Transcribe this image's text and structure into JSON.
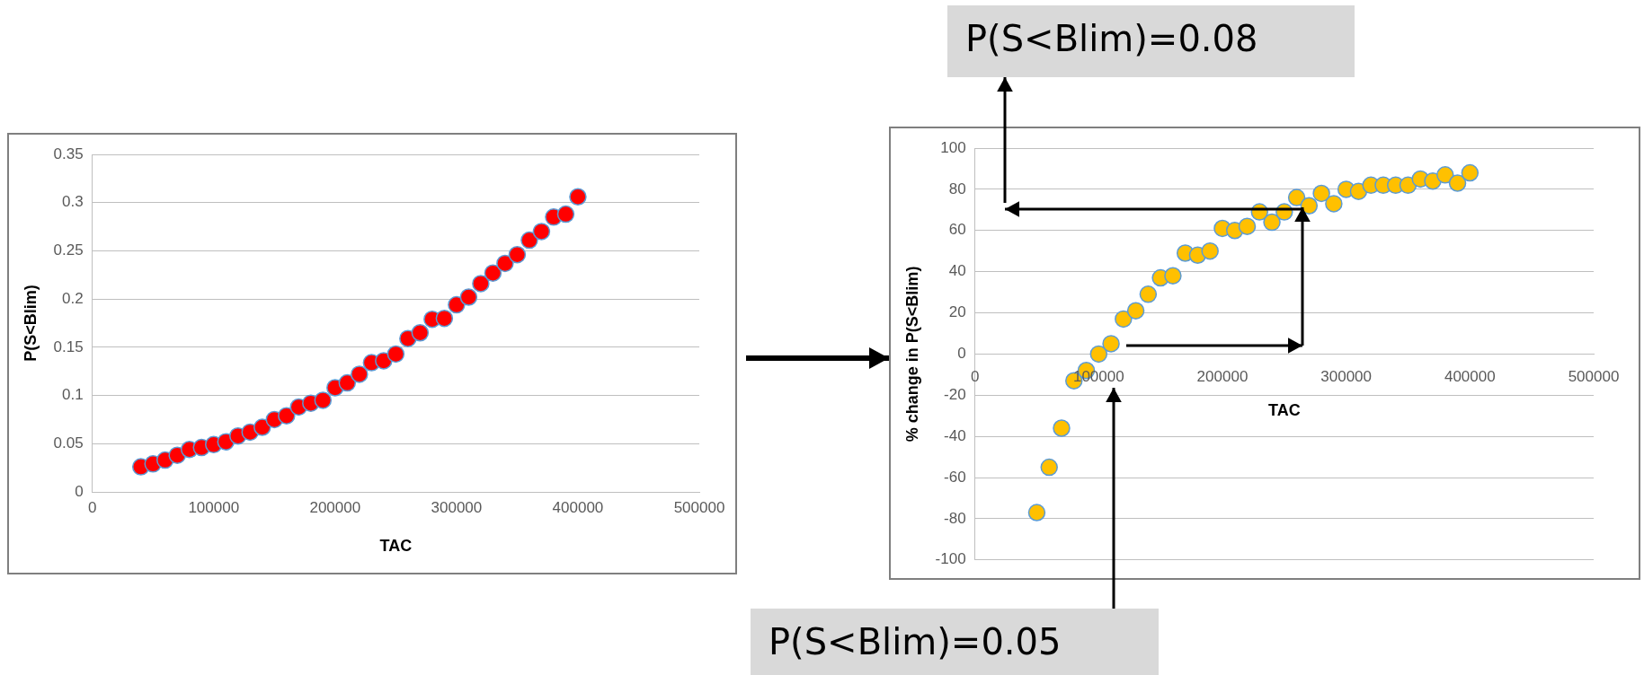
{
  "chart_data": [
    {
      "type": "scatter",
      "xlabel": "TAC",
      "ylabel": "P(S<Blim)",
      "color": "#ff0000",
      "marker": "circle",
      "grid": "y",
      "xlim": [
        0,
        500000
      ],
      "xticks": [
        0,
        100000,
        200000,
        300000,
        400000,
        500000
      ],
      "ylim": [
        0,
        0.35
      ],
      "yticks": [
        0,
        0.05,
        0.1,
        0.15,
        0.2,
        0.25,
        0.3,
        0.35
      ],
      "x": [
        40000,
        50000,
        60000,
        70000,
        80000,
        90000,
        100000,
        110000,
        120000,
        130000,
        140000,
        150000,
        160000,
        170000,
        180000,
        190000,
        200000,
        210000,
        220000,
        230000,
        240000,
        250000,
        260000,
        270000,
        280000,
        290000,
        300000,
        310000,
        320000,
        330000,
        340000,
        350000,
        360000,
        370000,
        380000,
        390000,
        400000
      ],
      "values": [
        0.026,
        0.029,
        0.033,
        0.038,
        0.044,
        0.046,
        0.049,
        0.052,
        0.058,
        0.062,
        0.067,
        0.075,
        0.079,
        0.088,
        0.092,
        0.095,
        0.108,
        0.113,
        0.122,
        0.134,
        0.136,
        0.143,
        0.159,
        0.165,
        0.179,
        0.18,
        0.194,
        0.202,
        0.216,
        0.227,
        0.237,
        0.246,
        0.261,
        0.27,
        0.285,
        0.288,
        0.306
      ]
    },
    {
      "type": "scatter",
      "xlabel": "TAC",
      "ylabel": "% change in P(S<Blim)",
      "color": "#ffc000",
      "marker": "circle",
      "grid": "y",
      "xlim": [
        0,
        500000
      ],
      "xticks": [
        0,
        100000,
        200000,
        300000,
        400000,
        500000
      ],
      "ylim": [
        -100,
        100
      ],
      "yticks": [
        -100,
        -80,
        -60,
        -40,
        -20,
        0,
        20,
        40,
        60,
        80,
        100
      ],
      "x": [
        50000,
        60000,
        70000,
        80000,
        90000,
        100000,
        110000,
        120000,
        130000,
        140000,
        150000,
        160000,
        170000,
        180000,
        190000,
        200000,
        210000,
        220000,
        230000,
        240000,
        250000,
        260000,
        270000,
        280000,
        290000,
        300000,
        310000,
        320000,
        330000,
        340000,
        350000,
        360000,
        370000,
        380000,
        390000,
        400000
      ],
      "values": [
        -77,
        -55,
        -36,
        -13,
        -8,
        0,
        5,
        17,
        21,
        29,
        37,
        38,
        49,
        48,
        50,
        61,
        60,
        62,
        69,
        64,
        69,
        76,
        72,
        78,
        73,
        80,
        79,
        82,
        82,
        82,
        82,
        85,
        84,
        87,
        83,
        88
      ],
      "annotations": [
        "P(S<Blim)=0.08",
        "P(S<Blim)=0.05"
      ]
    }
  ]
}
